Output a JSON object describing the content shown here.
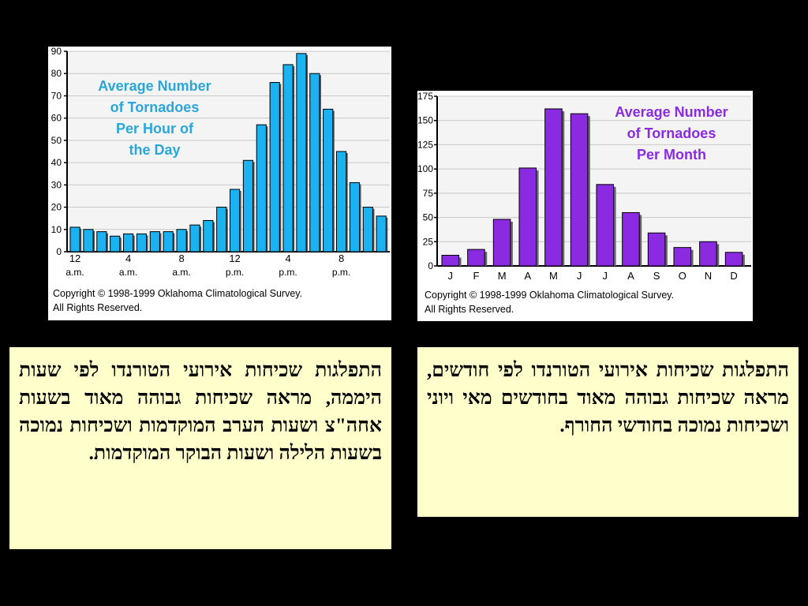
{
  "chart_data": [
    {
      "type": "bar",
      "title": "Average Number of Tornadoes Per Hour of the Day",
      "title_lines": [
        "Average Number",
        "of Tornadoes",
        "Per Hour of",
        "the Day"
      ],
      "yticks": [
        "0",
        "10",
        "20",
        "30",
        "40",
        "50",
        "60",
        "70",
        "80",
        "90"
      ],
      "ylim": [
        0,
        90
      ],
      "xtick_labels": [
        {
          "hour": "12",
          "period": "a.m."
        },
        {
          "hour": "4",
          "period": "a.m."
        },
        {
          "hour": "8",
          "period": "a.m."
        },
        {
          "hour": "12",
          "period": "p.m."
        },
        {
          "hour": "4",
          "period": "p.m."
        },
        {
          "hour": "8",
          "period": "p.m."
        }
      ],
      "values": [
        11,
        10,
        9,
        7,
        8,
        8,
        9,
        9,
        10,
        12,
        14,
        20,
        28,
        41,
        57,
        76,
        84,
        89,
        80,
        64,
        45,
        31,
        20,
        16
      ],
      "bar_color": "#1ab2f0",
      "title_color": "#2aa6d8",
      "copyright": [
        "Copyright © 1998-1999 Oklahoma Climatological Survey.",
        "All Rights Reserved."
      ]
    },
    {
      "type": "bar",
      "title": "Average Number of Tornadoes Per Month",
      "title_lines": [
        "Average Number",
        "of Tornadoes",
        "Per Month"
      ],
      "yticks": [
        "0",
        "25",
        "50",
        "75",
        "100",
        "125",
        "150",
        "175"
      ],
      "ylim": [
        0,
        175
      ],
      "categories": [
        "J",
        "F",
        "M",
        "A",
        "M",
        "J",
        "J",
        "A",
        "S",
        "O",
        "N",
        "D"
      ],
      "values": [
        11,
        17,
        48,
        101,
        162,
        157,
        84,
        55,
        34,
        19,
        25,
        14
      ],
      "bar_color": "#8a2be2",
      "title_color": "#8a2be2",
      "copyright": [
        "Copyright © 1998-1999 Oklahoma Climatological Survey.",
        "All Rights Reserved."
      ]
    }
  ],
  "text_boxes": {
    "hour": "התפלגות שכיחות אירועי הטורנדו לפי שעות היממה, מראה שכיחות גבוהה מאוד בשעות אחה\"צ ושעות הערב המוקדמות ושכיחות נמוכה בשעות הלילה ושעות הבוקר המוקדמות.",
    "month": "התפלגות שכיחות אירועי הטורנדו לפי חודשים, מראה שכיחות גבוהה מאוד בחודשים מאי ויוני ושכיחות נמוכה בחודשי החורף."
  }
}
